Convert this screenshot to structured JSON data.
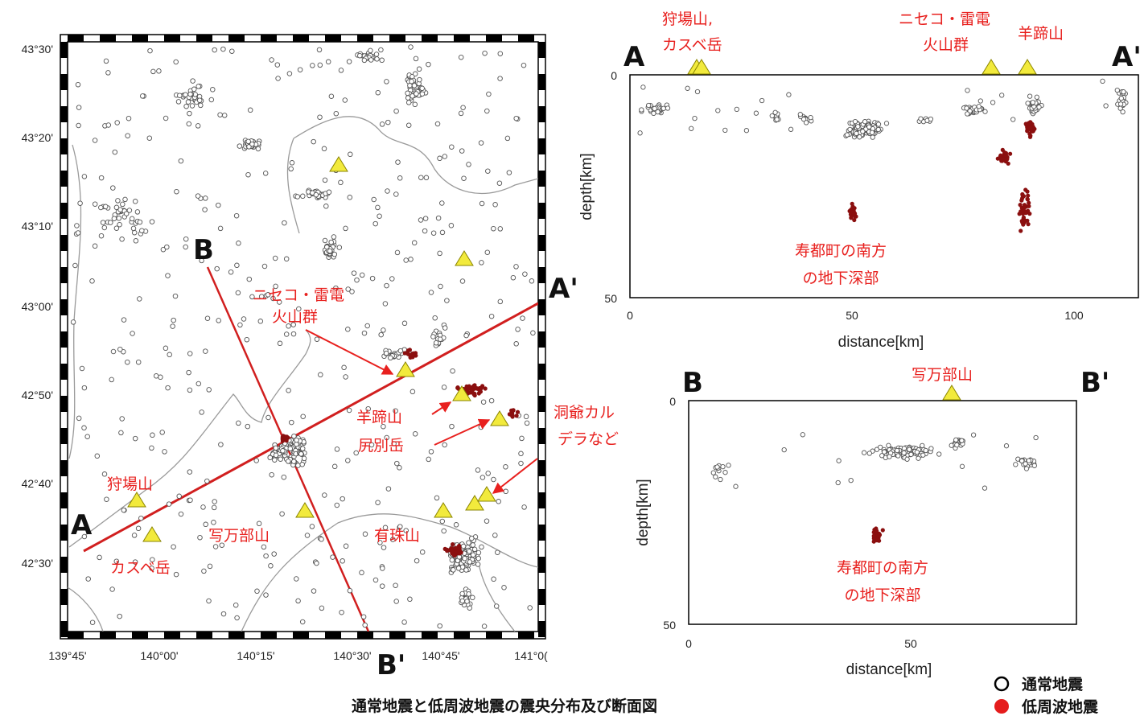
{
  "map": {
    "lat_labels": [
      "43°30'",
      "43°20'",
      "43°10'",
      "43°00'",
      "42°50'",
      "42°40'",
      "42°30'"
    ],
    "lon_labels": [
      "139°45'",
      "140°00'",
      "140°15'",
      "140°30'",
      "140°45'",
      "141°0("
    ],
    "profile_labels": {
      "a": "A",
      "a_prime": "A'",
      "b": "B",
      "b_prime": "B'"
    },
    "volcano_labels": {
      "niseko": [
        "ニセコ・雷電",
        "火山群"
      ],
      "yotei": "羊蹄山",
      "shiribetsu": "尻別岳",
      "toya": [
        "洞爺カル",
        "デラなど"
      ],
      "kariba": "狩場山",
      "kasube": "カスベ岳",
      "shakotan": "写万部山",
      "usu": "有珠山"
    }
  },
  "section_a": {
    "labels": {
      "a": "A",
      "a_prime": "A'"
    },
    "volcano_labels": {
      "kariba_kasube": [
        "狩場山,",
        "カスベ岳"
      ],
      "niseko": [
        "ニセコ・雷電",
        "火山群"
      ],
      "yotei": "羊蹄山"
    },
    "y_ticks": [
      "0",
      "50"
    ],
    "x_ticks": [
      "0",
      "50",
      "100"
    ],
    "ylabel": "depth[km]",
    "xlabel": "distance[km]",
    "annotation": [
      "寿都町の南方",
      "の地下深部"
    ]
  },
  "section_b": {
    "labels": {
      "b": "B",
      "b_prime": "B'"
    },
    "volcano_label": "写万部山",
    "y_ticks": [
      "0",
      "50"
    ],
    "x_ticks": [
      "0",
      "50"
    ],
    "ylabel": "depth[km]",
    "xlabel": "distance[km]",
    "annotation": [
      "寿都町の南方",
      "の地下深部"
    ]
  },
  "legend": {
    "normal": "通常地震",
    "low_freq": "低周波地震"
  },
  "caption": "通常地震と低周波地震の震央分布及び断面図",
  "colors": {
    "normal_quake": "#ffffff",
    "low_freq_quake": "#8b0f0f",
    "volcano": "#f2ea3c",
    "profile_line": "#d11f1f",
    "label_red": "#e8201e"
  }
}
